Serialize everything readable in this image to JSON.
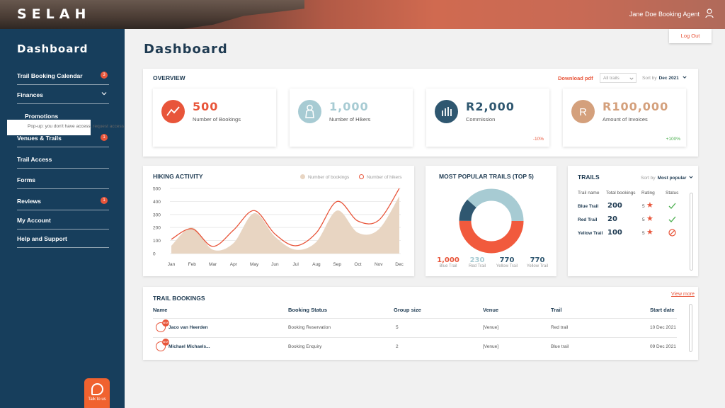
{
  "app": {
    "logo": "SELAH",
    "user_name": "Jane Doe Booking Agent",
    "logout_label": "Log Out"
  },
  "sidebar": {
    "title": "Dashboard",
    "items": [
      {
        "label": "Trail Booking Calendar",
        "badge": "3"
      },
      {
        "label": "Finances"
      },
      {
        "label": "Promotions"
      },
      {
        "label": "Venues & Trails",
        "badge": "1"
      },
      {
        "label": "Trail Access"
      },
      {
        "label": "Forms"
      },
      {
        "label": "Reviews",
        "badge": "1"
      },
      {
        "label": "My Account"
      },
      {
        "label": "Help and Support"
      }
    ],
    "popup_text": "Pop-up: you don't have access, request access",
    "talk_label": "Talk to us"
  },
  "page": {
    "title": "Dashboard"
  },
  "overview": {
    "title": "OVERVIEW",
    "download_label": "Download pdf",
    "filter_value": "All trails",
    "sort_label": "Sort by",
    "sort_value": "Dec 2021",
    "stats": [
      {
        "value": "500",
        "label": "Number of Bookings",
        "color": "#e8553a",
        "icon": "trend-line-icon"
      },
      {
        "value": "1,000",
        "label": "Number of Hikers",
        "color": "#a7cbd3",
        "icon": "hiker-icon"
      },
      {
        "value": "R2,000",
        "label": "Commission",
        "color": "#2f5770",
        "icon": "bar-chart-icon",
        "delta": "-10%",
        "delta_color": "#e8553a"
      },
      {
        "value": "R100,000",
        "label": "Amount of Invoices",
        "color": "#d4a07c",
        "icon": "rand-icon",
        "delta": "+100%",
        "delta_color": "#4caf50"
      }
    ]
  },
  "hiking": {
    "title": "HIKING ACTIVITY",
    "legend_bookings": "Number of bookings",
    "legend_hikers": "Number of hikers",
    "y_ticks": [
      "500",
      "400",
      "300",
      "200",
      "100",
      "0"
    ],
    "months": [
      "Jan",
      "Feb",
      "Mar",
      "Apr",
      "May",
      "Jun",
      "Jul",
      "Aug",
      "Sep",
      "Oct",
      "Nov",
      "Dec"
    ]
  },
  "chart_data": {
    "type": "line",
    "categories": [
      "Jan",
      "Feb",
      "Mar",
      "Apr",
      "May",
      "Jun",
      "Jul",
      "Aug",
      "Sep",
      "Oct",
      "Nov",
      "Dec"
    ],
    "ylim": [
      0,
      500
    ],
    "series": [
      {
        "name": "Number of bookings",
        "kind": "area",
        "color": "#e8d5c2",
        "values": [
          60,
          200,
          30,
          80,
          310,
          130,
          30,
          90,
          330,
          160,
          185,
          440
        ]
      },
      {
        "name": "Number of hikers",
        "kind": "line",
        "color": "#e8553a",
        "values": [
          110,
          190,
          55,
          180,
          330,
          150,
          60,
          160,
          400,
          250,
          255,
          500
        ]
      }
    ]
  },
  "popular": {
    "title": "MOST POPULAR TRAILS (TOP 5)",
    "segments": [
      {
        "value": 1000,
        "color": "#f15a3d"
      },
      {
        "value": 230,
        "color": "#2f5770"
      },
      {
        "value": 770,
        "color": "#a7cbd3"
      }
    ],
    "items": [
      {
        "value": "1,000",
        "name": "Blue Trail",
        "color": "#e8553a"
      },
      {
        "value": "230",
        "name": "Red Trail",
        "color": "#a7cbd3"
      },
      {
        "value": "770",
        "name": "Yellow Trail",
        "color": "#2f5770"
      },
      {
        "value": "770",
        "name": "Yellow Trail",
        "color": "#2f5770"
      }
    ]
  },
  "trails": {
    "title": "TRAILS",
    "sort_label": "Sort by",
    "sort_value": "Most popular",
    "headers": [
      "Trail name",
      "Total bookings",
      "Rating",
      "Status"
    ],
    "rows": [
      {
        "name": "Blue Trail",
        "total": "200",
        "rating": "5",
        "status": "active"
      },
      {
        "name": "Red Trail",
        "total": "20",
        "rating": "5",
        "status": "active"
      },
      {
        "name": "Yellow Trail",
        "total": "100",
        "rating": "5",
        "status": "blocked"
      }
    ]
  },
  "bookings": {
    "title": "TRAIL BOOKINGS",
    "view_more": "View more",
    "headers": [
      "Name",
      "Booking Status",
      "Group size",
      "Venue",
      "Trail",
      "Start date"
    ],
    "new_tag": "NEW",
    "rows": [
      {
        "name": "Jaco van Heerden",
        "status": "Booking Reservation",
        "group": "5",
        "venue": "[Venue]",
        "trail": "Red trail",
        "date": "10 Dec 2021"
      },
      {
        "name": "Michael Michaels...",
        "status": "Booking Enquiry",
        "group": "2",
        "venue": "[Venue]",
        "trail": "Blue trail",
        "date": "09 Dec 2021"
      }
    ]
  }
}
